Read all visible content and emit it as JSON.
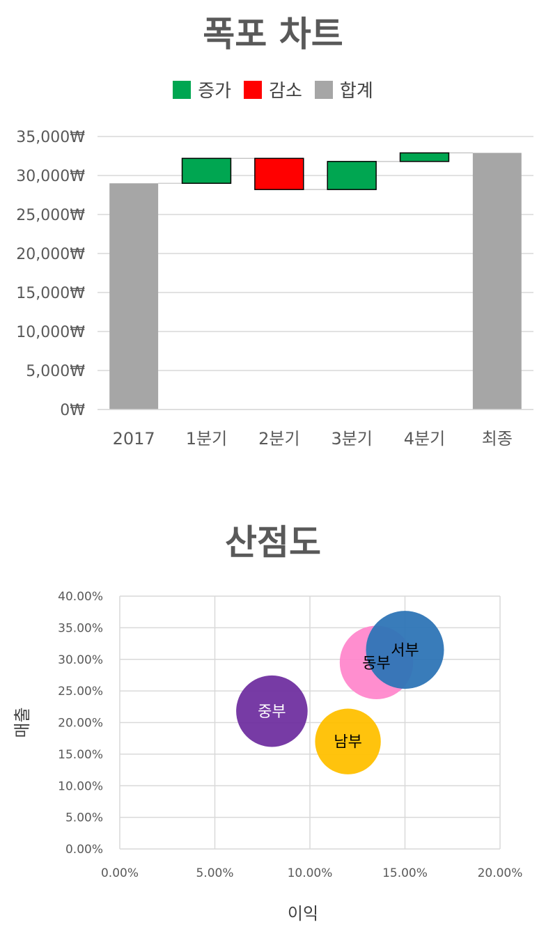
{
  "waterfall": {
    "title": "폭포 차트",
    "legend": [
      {
        "label": "증가",
        "color": "#00A651"
      },
      {
        "label": "감소",
        "color": "#FF0000"
      },
      {
        "label": "합계",
        "color": "#A6A6A6"
      }
    ]
  },
  "scatter": {
    "title": "산점도",
    "xlabel": "이익",
    "ylabel": "매출"
  },
  "chart_data": [
    {
      "type": "bar",
      "subtype": "waterfall",
      "title": "폭포 차트",
      "categories": [
        "2017",
        "1분기",
        "2분기",
        "3분기",
        "4분기",
        "최종"
      ],
      "bars": [
        {
          "category": "2017",
          "kind": "total",
          "start": 0,
          "end": 29000
        },
        {
          "category": "1분기",
          "kind": "increase",
          "start": 29000,
          "end": 32200
        },
        {
          "category": "2분기",
          "kind": "decrease",
          "start": 32200,
          "end": 28200
        },
        {
          "category": "3분기",
          "kind": "increase",
          "start": 28200,
          "end": 31800
        },
        {
          "category": "4분기",
          "kind": "increase",
          "start": 31800,
          "end": 32900
        },
        {
          "category": "최종",
          "kind": "total",
          "start": 0,
          "end": 32900
        }
      ],
      "ylim": [
        0,
        35000
      ],
      "yticks": [
        "0₩",
        "5,000₩",
        "10,000₩",
        "15,000₩",
        "20,000₩",
        "25,000₩",
        "30,000₩",
        "35,000₩"
      ],
      "grid": true,
      "legend_position": "top"
    },
    {
      "type": "scatter",
      "subtype": "bubble",
      "title": "산점도",
      "xlabel": "이익",
      "ylabel": "매출",
      "xlim": [
        0,
        0.2
      ],
      "ylim": [
        0,
        0.4
      ],
      "xticks": [
        "0.00%",
        "5.00%",
        "10.00%",
        "15.00%",
        "20.00%"
      ],
      "yticks": [
        "0.00%",
        "5.00%",
        "10.00%",
        "15.00%",
        "20.00%",
        "25.00%",
        "30.00%",
        "35.00%",
        "40.00%"
      ],
      "grid": true,
      "points": [
        {
          "label": "중부",
          "x": 0.08,
          "y": 0.218,
          "size": 0.52,
          "color": "#7030A0",
          "text_color": "#ffffff"
        },
        {
          "label": "남부",
          "x": 0.12,
          "y": 0.17,
          "size": 0.44,
          "color": "#FFC000",
          "text_color": "#000000"
        },
        {
          "label": "동부",
          "x": 0.135,
          "y": 0.295,
          "size": 0.55,
          "color": "#FF88CC",
          "text_color": "#000000"
        },
        {
          "label": "서부",
          "x": 0.15,
          "y": 0.315,
          "size": 0.62,
          "color": "#2E75B6",
          "text_color": "#000000"
        }
      ]
    }
  ]
}
